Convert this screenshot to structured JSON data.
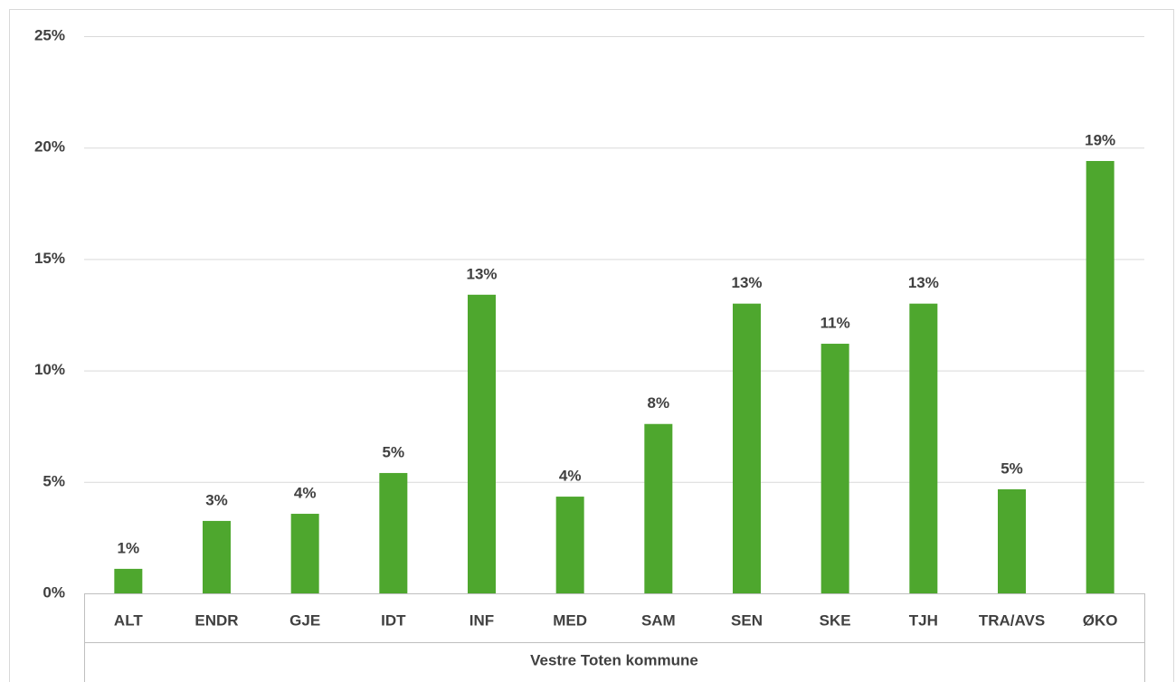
{
  "chart_data": {
    "type": "bar",
    "x_label": "Vestre Toten kommune",
    "categories": [
      "ALT",
      "ENDR",
      "GJE",
      "IDT",
      "INF",
      "MED",
      "SAM",
      "SEN",
      "SKE",
      "TJH",
      "TRA/AVS",
      "ØKO"
    ],
    "values": [
      1.1,
      3.25,
      3.57,
      5.4,
      13.4,
      4.34,
      7.6,
      13.0,
      11.2,
      13.0,
      4.67,
      19.4
    ],
    "value_labels": [
      "1%",
      "3%",
      "4%",
      "5%",
      "13%",
      "4%",
      "8%",
      "13%",
      "11%",
      "13%",
      "5%",
      "19%"
    ],
    "color": "#4ea72e",
    "ylim": [
      0,
      25
    ],
    "yticks": [
      {
        "value": 0,
        "label": "0%"
      },
      {
        "value": 5,
        "label": "5%"
      },
      {
        "value": 10,
        "label": "10%"
      },
      {
        "value": 15,
        "label": "15%"
      },
      {
        "value": 20,
        "label": "20%"
      },
      {
        "value": 25,
        "label": "25%"
      }
    ],
    "grid": true
  }
}
